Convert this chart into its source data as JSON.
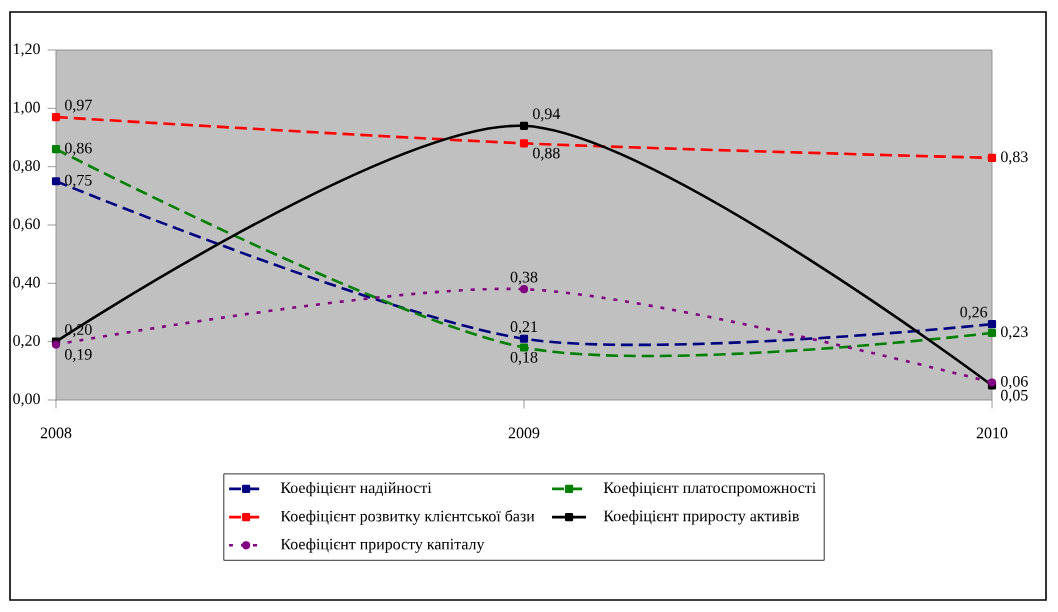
{
  "chart_data": {
    "type": "line",
    "x": [
      2008,
      2009,
      2010
    ],
    "xlim": [
      2008,
      2010
    ],
    "xticks": [
      2008,
      2009,
      2010
    ],
    "ylim": [
      0,
      1.2
    ],
    "yticks": [
      {
        "value": 0,
        "label": "0,00"
      },
      {
        "value": 0.2,
        "label": "0,20"
      },
      {
        "value": 0.4,
        "label": "0,40"
      },
      {
        "value": 0.6,
        "label": "0,60"
      },
      {
        "value": 0.8,
        "label": "0,80"
      },
      {
        "value": 1.0,
        "label": "1,00"
      },
      {
        "value": 1.2,
        "label": "1,20"
      }
    ],
    "grid": false,
    "legend": "bottom",
    "series": [
      {
        "name": "Коефіцієнт надійності",
        "color": "#000080",
        "values": [
          0.75,
          0.21,
          0.26
        ],
        "value_labels": [
          "0,75",
          "0,21",
          "0,26"
        ],
        "line_style": "dashed",
        "marker": "square"
      },
      {
        "name": "Коефіцієнт платоспроможності",
        "color": "#008000",
        "values": [
          0.86,
          0.18,
          0.23
        ],
        "value_labels": [
          "0,86",
          "0,18",
          "0,23"
        ],
        "line_style": "dashed",
        "marker": "square"
      },
      {
        "name": "Коефіцієнт розвитку клієнтської бази",
        "color": "#ff0000",
        "values": [
          0.97,
          0.88,
          0.83
        ],
        "value_labels": [
          "0,97",
          "0,88",
          "0,83"
        ],
        "line_style": "dashed",
        "marker": "square"
      },
      {
        "name": "Коефіцієнт приросту активів",
        "color": "#000000",
        "values": [
          0.2,
          0.94,
          0.05
        ],
        "value_labels": [
          "0,20",
          "0,94",
          "0,05"
        ],
        "line_style": "solid",
        "marker": "square"
      },
      {
        "name": "Коефіцієнт приросту капіталу",
        "color": "#800080",
        "values": [
          0.19,
          0.38,
          0.06
        ],
        "value_labels": [
          "0,19",
          "0,38",
          "0,06"
        ],
        "line_style": "dotted",
        "marker": "circle"
      }
    ]
  }
}
